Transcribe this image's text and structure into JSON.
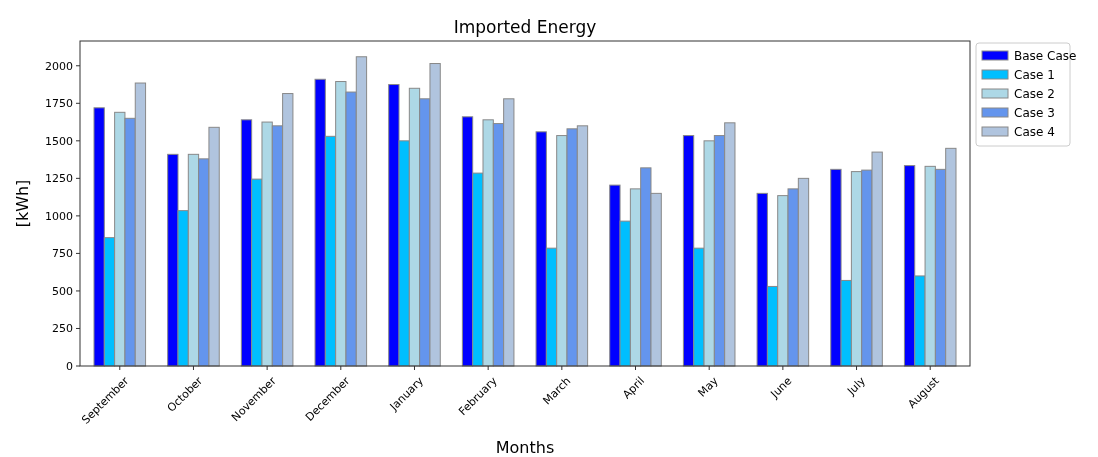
{
  "chart_data": {
    "type": "bar",
    "title": "Imported Energy",
    "xlabel": "Months",
    "ylabel": "[kWh]",
    "categories": [
      "September",
      "October",
      "November",
      "December",
      "January",
      "February",
      "March",
      "April",
      "May",
      "June",
      "July",
      "August"
    ],
    "series": [
      {
        "name": "Base Case",
        "color": "#0000ff",
        "values": [
          1720,
          1410,
          1640,
          1910,
          1875,
          1660,
          1560,
          1205,
          1535,
          1150,
          1310,
          1335
        ]
      },
      {
        "name": "Case 1",
        "color": "#00bfff",
        "values": [
          855,
          1035,
          1245,
          1530,
          1500,
          1285,
          785,
          965,
          785,
          530,
          570,
          600
        ]
      },
      {
        "name": "Case 2",
        "color": "#add8e6",
        "values": [
          1690,
          1410,
          1625,
          1895,
          1850,
          1640,
          1535,
          1180,
          1500,
          1135,
          1295,
          1330
        ]
      },
      {
        "name": "Case 3",
        "color": "#6495ed",
        "values": [
          1650,
          1380,
          1600,
          1825,
          1780,
          1615,
          1580,
          1320,
          1535,
          1180,
          1305,
          1310
        ]
      },
      {
        "name": "Case 4",
        "color": "#b0c4de",
        "values": [
          1885,
          1590,
          1815,
          2060,
          2015,
          1780,
          1600,
          1150,
          1620,
          1250,
          1425,
          1450
        ]
      }
    ],
    "ylim": [
      0,
      2165
    ],
    "yticks": [
      0,
      250,
      500,
      750,
      1000,
      1250,
      1500,
      1750,
      2000
    ],
    "grid": false,
    "legend": "top right"
  }
}
